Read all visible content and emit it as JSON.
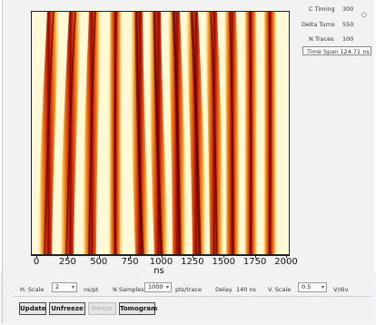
{
  "info": {
    "c_timing_label": "C Timing",
    "c_timing_value": "300",
    "delta_turns_label": "Delta Turns",
    "delta_turns_value": "550",
    "n_traces_label": "N Traces",
    "n_traces_value": "100",
    "time_span": "Time Span 124.71 ns"
  },
  "plot": {
    "x_ticks": [
      "0",
      "250",
      "500",
      "750",
      "1000",
      "1250",
      "1500",
      "1750",
      "2000"
    ],
    "x_label": "ns",
    "colors": {
      "background": "#fff9d6",
      "band_light": "#f5a623",
      "band_mid": "#d32f10",
      "band_dark": "#3a0000"
    }
  },
  "controls": {
    "h_scale_label": "H. Scale",
    "h_scale_value": "2",
    "h_scale_unit": "ns/pt",
    "n_samples_label": "N Samples",
    "n_samples_value": "1000",
    "n_samples_unit": "pts/trace",
    "delay_label": "Delay",
    "delay_value": "140 ns",
    "v_scale_label": "V. Scale",
    "v_scale_value": "0.5",
    "v_scale_unit": "V/div"
  },
  "buttons": {
    "update": "Update",
    "unfreeze": "Unfreeze",
    "freeze": "Freeze",
    "tomogram": "Tomogram"
  }
}
